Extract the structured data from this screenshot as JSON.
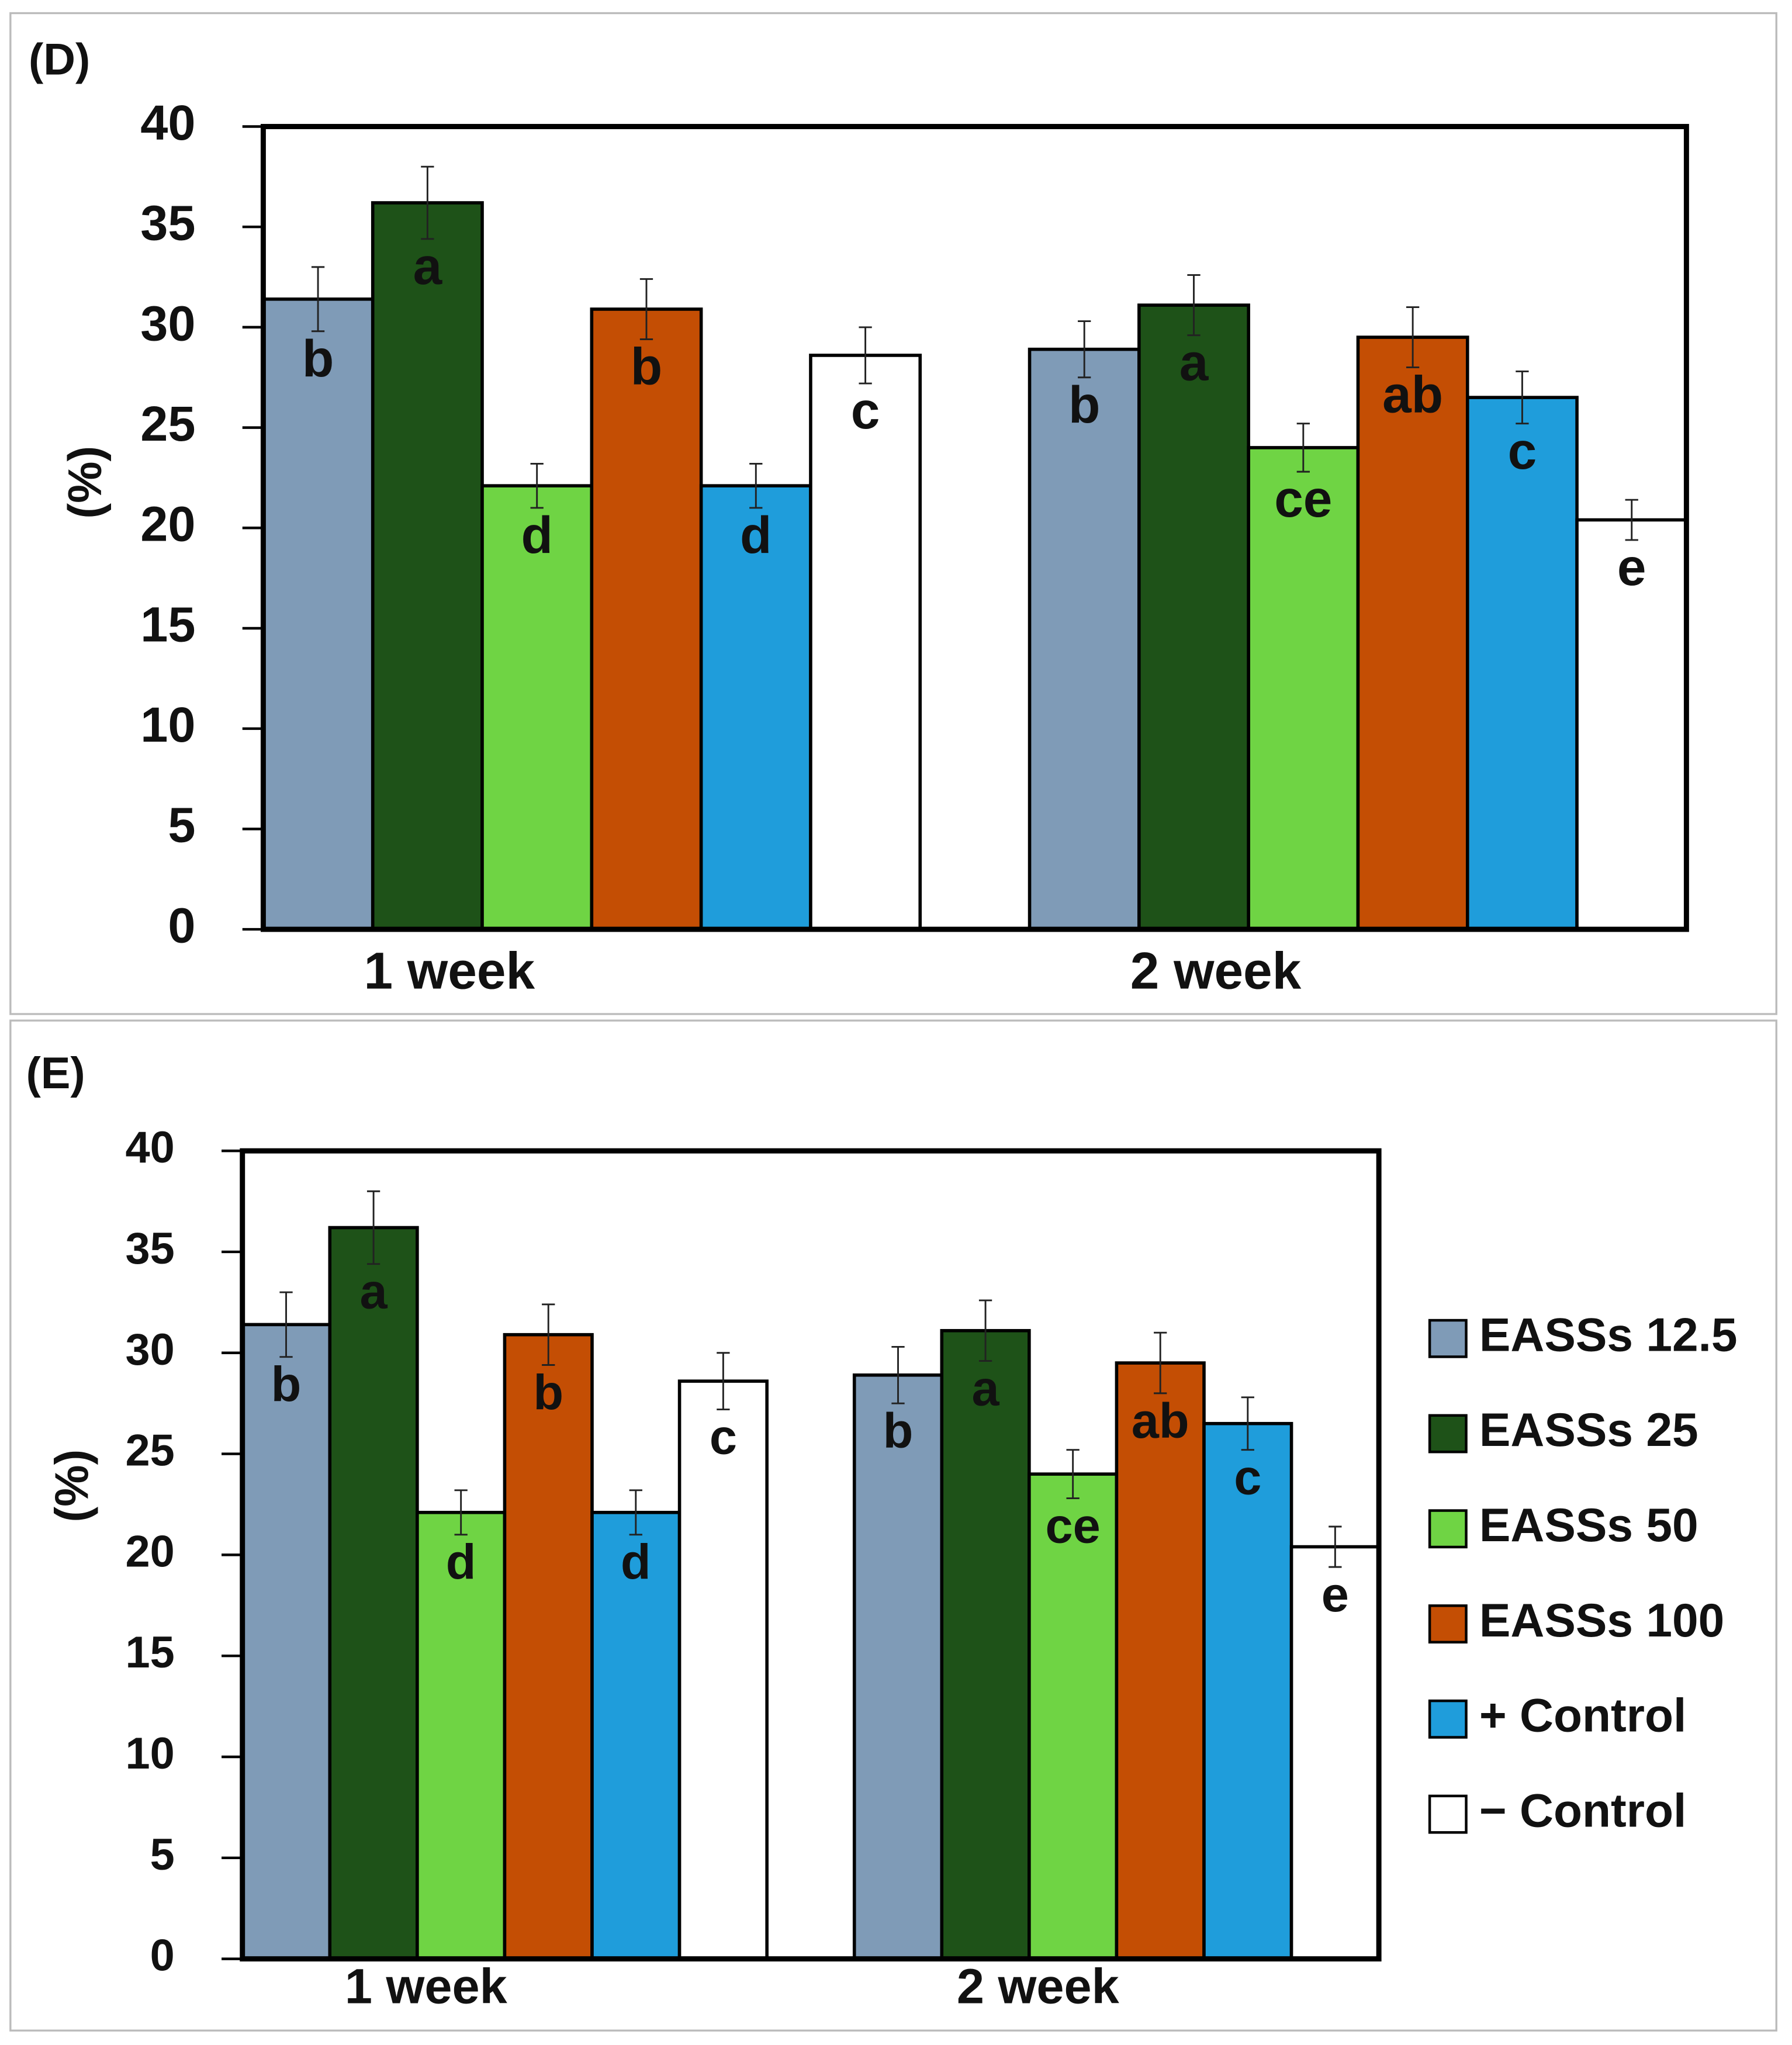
{
  "chart_data": [
    {
      "type": "bar",
      "panel_label": "(D)",
      "ylabel": "(%)",
      "categories": [
        "1 week",
        "2 week"
      ],
      "ylim": [
        0,
        40
      ],
      "yticks": [
        0,
        5,
        10,
        15,
        20,
        25,
        30,
        35,
        40
      ],
      "legend": false,
      "series": [
        {
          "color": "#7f9bb7",
          "values": [
            31.4,
            28.9
          ],
          "errors": [
            1.6,
            1.4
          ],
          "letters": [
            "b",
            "b"
          ]
        },
        {
          "color": "#1e5218",
          "values": [
            36.2,
            31.1
          ],
          "errors": [
            1.8,
            1.5
          ],
          "letters": [
            "a",
            "a"
          ]
        },
        {
          "color": "#6fd444",
          "values": [
            22.1,
            24.0
          ],
          "errors": [
            1.1,
            1.2
          ],
          "letters": [
            "d",
            "ce"
          ]
        },
        {
          "color": "#c44e04",
          "values": [
            30.9,
            29.5
          ],
          "errors": [
            1.5,
            1.5
          ],
          "letters": [
            "b",
            "ab"
          ]
        },
        {
          "color": "#1f9ddb",
          "values": [
            22.1,
            26.5
          ],
          "errors": [
            1.1,
            1.3
          ],
          "letters": [
            "d",
            "c"
          ]
        },
        {
          "color": "#ffffff",
          "values": [
            28.6,
            20.4
          ],
          "errors": [
            1.4,
            1.0
          ],
          "letters": [
            "c",
            "e"
          ]
        }
      ]
    },
    {
      "type": "bar",
      "panel_label": "(E)",
      "ylabel": "(%)",
      "categories": [
        "1 week",
        "2 week"
      ],
      "ylim": [
        0,
        40
      ],
      "yticks": [
        0,
        5,
        10,
        15,
        20,
        25,
        30,
        35,
        40
      ],
      "legend": "right",
      "series": [
        {
          "name": "EASSs 12.5",
          "color": "#7f9bb7",
          "values": [
            31.4,
            28.9
          ],
          "errors": [
            1.6,
            1.4
          ],
          "letters": [
            "b",
            "b"
          ]
        },
        {
          "name": "EASSs 25",
          "color": "#1e5218",
          "values": [
            36.2,
            31.1
          ],
          "errors": [
            1.8,
            1.5
          ],
          "letters": [
            "a",
            "a"
          ]
        },
        {
          "name": "EASSs 50",
          "color": "#6fd444",
          "values": [
            22.1,
            24.0
          ],
          "errors": [
            1.1,
            1.2
          ],
          "letters": [
            "d",
            "ce"
          ]
        },
        {
          "name": "EASSs 100",
          "color": "#c44e04",
          "values": [
            30.9,
            29.5
          ],
          "errors": [
            1.5,
            1.5
          ],
          "letters": [
            "b",
            "ab"
          ]
        },
        {
          "name": "+ Control",
          "color": "#1f9ddb",
          "values": [
            22.1,
            26.5
          ],
          "errors": [
            1.1,
            1.3
          ],
          "letters": [
            "d",
            "c"
          ]
        },
        {
          "name": "−  Control",
          "color": "#ffffff",
          "values": [
            28.6,
            20.4
          ],
          "errors": [
            1.4,
            1.0
          ],
          "letters": [
            "c",
            "e"
          ]
        }
      ]
    }
  ]
}
